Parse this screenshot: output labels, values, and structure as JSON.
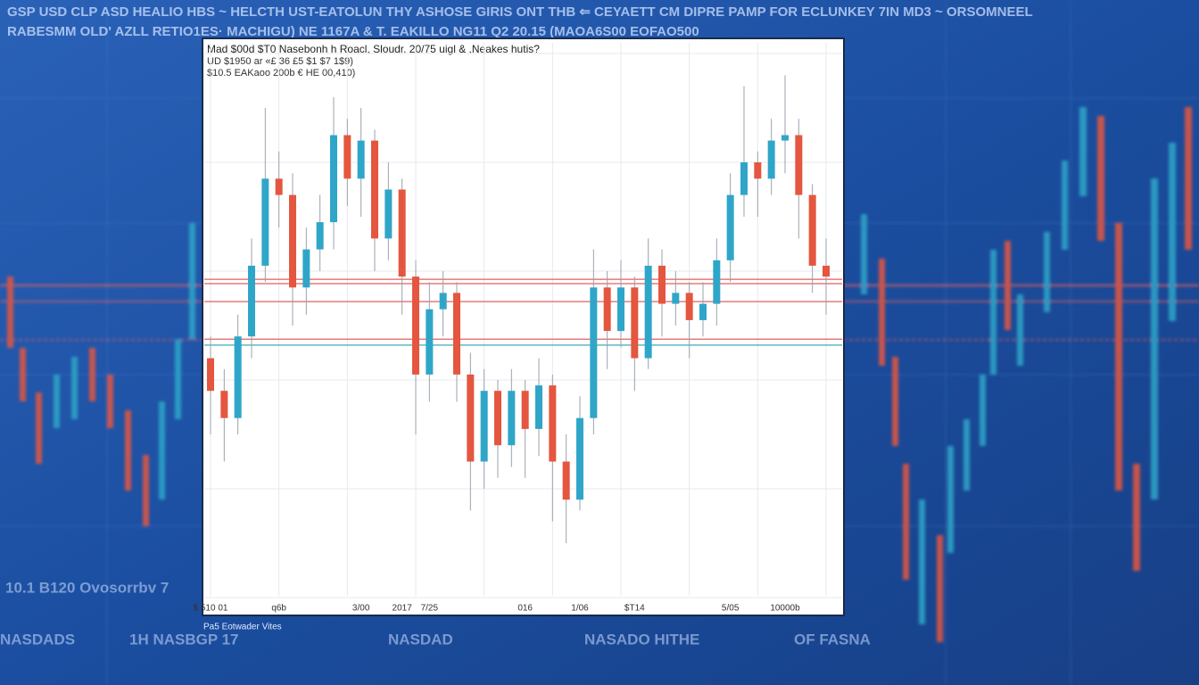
{
  "header": {
    "line1": "GSP USD CLP ASD HEALIO HBS ~ HELCTH UST-EATOLUN THY ASHOSE GIRIS ONT THB ⇐ CEYAETT CM DIPRE PAMP FOR ECLUNKEY 7IN MD3 ~ ORSOMNEEL",
    "line2": "RABESMM OLD' AZLL RETIO1ES· MACHIGU) NE 1167A & T. EAKILLO NG11 Q2 20.15 (MAOA6S00 EOFAO500"
  },
  "chart_data": {
    "type": "candlestick",
    "title": "Mad $00d $T0 Nasebonh h Roacl, Sloudr. 20/75 uigl & ,Neakes hutis?",
    "subtitle": [
      "UD $1950 ar «£ 36 £5 $1 $7 1$9)",
      "$10.5 EAKaoo 200b € HE 00,410)"
    ],
    "categories": [
      "$ 510 01",
      null,
      null,
      null,
      null,
      "q6b",
      null,
      null,
      null,
      null,
      null,
      "3/00",
      null,
      null,
      "2017",
      null,
      "7/25",
      null,
      null,
      null,
      null,
      null,
      null,
      "016",
      null,
      null,
      null,
      "1/06",
      null,
      null,
      null,
      "$T14",
      null,
      null,
      null,
      null,
      null,
      null,
      "5/05",
      null,
      null,
      null,
      "10000b",
      null,
      null,
      null
    ],
    "open": [
      44,
      38,
      33,
      48,
      61,
      77,
      74,
      57,
      64,
      69,
      85,
      77,
      84,
      66,
      75,
      59,
      41,
      53,
      56,
      41,
      25,
      38,
      28,
      38,
      31,
      39,
      25,
      18,
      33,
      57,
      49,
      57,
      44,
      61,
      54,
      56,
      51,
      54,
      62,
      74,
      80,
      77,
      84,
      85,
      74,
      61
    ],
    "high": [
      48,
      42,
      52,
      66,
      90,
      82,
      78,
      68,
      74,
      92,
      88,
      90,
      86,
      80,
      77,
      62,
      58,
      60,
      58,
      45,
      42,
      40,
      42,
      40,
      44,
      41,
      30,
      37,
      64,
      60,
      62,
      59,
      66,
      64,
      60,
      58,
      58,
      66,
      78,
      94,
      82,
      88,
      96,
      88,
      76,
      66
    ],
    "low": [
      30,
      25,
      30,
      44,
      58,
      68,
      50,
      52,
      60,
      64,
      72,
      70,
      60,
      62,
      52,
      30,
      36,
      48,
      36,
      16,
      20,
      22,
      24,
      22,
      26,
      14,
      10,
      16,
      30,
      42,
      46,
      38,
      42,
      48,
      50,
      44,
      48,
      50,
      58,
      70,
      70,
      74,
      78,
      66,
      56,
      52
    ],
    "close": [
      38,
      33,
      48,
      61,
      77,
      74,
      57,
      64,
      69,
      85,
      77,
      84,
      66,
      75,
      59,
      41,
      53,
      56,
      41,
      25,
      38,
      28,
      38,
      31,
      39,
      25,
      18,
      33,
      57,
      49,
      57,
      44,
      61,
      54,
      56,
      51,
      54,
      62,
      74,
      80,
      77,
      84,
      85,
      74,
      61,
      59
    ],
    "up_color": "#2fa6c8",
    "down_color": "#e4563f",
    "levels": [
      {
        "value": 58.5,
        "color": "#e06060"
      },
      {
        "value": 57.7,
        "color": "#e06060"
      },
      {
        "value": 54.4,
        "color": "#e06060"
      },
      {
        "value": 47.5,
        "color": "#e06060"
      },
      {
        "value": 46.4,
        "color": "#2aa0a8"
      }
    ],
    "ylim": [
      0,
      100
    ],
    "grid": true
  },
  "footer": {
    "caption": "Pa5 Eotwader Vites",
    "texts": [
      "10.1 B120 Ovosorrbv 7",
      "NASDADS",
      "1H NASBGP 17",
      "NASDAD",
      "NASADO HITHE",
      "OF FASNA"
    ]
  }
}
